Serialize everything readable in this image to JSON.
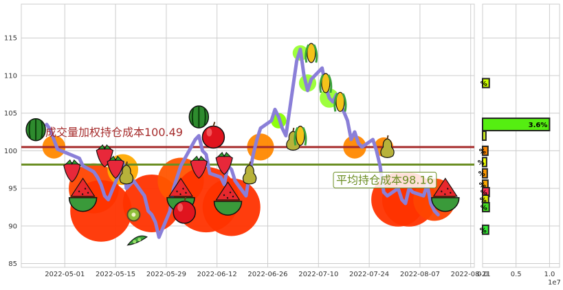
{
  "chart_data": {
    "type": "line",
    "title": "",
    "x_dates": [
      "2022-04-26",
      "2022-04-27",
      "2022-04-28",
      "2022-04-29",
      "2022-05-05",
      "2022-05-06",
      "2022-05-09",
      "2022-05-10",
      "2022-05-11",
      "2022-05-12",
      "2022-05-13",
      "2022-05-16",
      "2022-05-17",
      "2022-05-18",
      "2022-05-19",
      "2022-05-20",
      "2022-05-23",
      "2022-05-24",
      "2022-05-25",
      "2022-05-26",
      "2022-05-27",
      "2022-05-30",
      "2022-05-31",
      "2022-06-01",
      "2022-06-02",
      "2022-06-06",
      "2022-06-07",
      "2022-06-08",
      "2022-06-09",
      "2022-06-10",
      "2022-06-13",
      "2022-06-14",
      "2022-06-15",
      "2022-06-16",
      "2022-06-17",
      "2022-06-20",
      "2022-06-21",
      "2022-06-22",
      "2022-06-23",
      "2022-06-24",
      "2022-06-27",
      "2022-06-28",
      "2022-06-29",
      "2022-06-30",
      "2022-07-01",
      "2022-07-04",
      "2022-07-05",
      "2022-07-06",
      "2022-07-07",
      "2022-07-08",
      "2022-07-11",
      "2022-07-12",
      "2022-07-13",
      "2022-07-14",
      "2022-07-15",
      "2022-07-18",
      "2022-07-19",
      "2022-07-20",
      "2022-07-21",
      "2022-07-22",
      "2022-07-25",
      "2022-07-26",
      "2022-07-27",
      "2022-07-28",
      "2022-07-29",
      "2022-08-01",
      "2022-08-02",
      "2022-08-03",
      "2022-08-04",
      "2022-08-05",
      "2022-08-08",
      "2022-08-09",
      "2022-08-10",
      "2022-08-11",
      "2022-08-12"
    ],
    "price": [
      103.5,
      102.8,
      101.5,
      100.2,
      99.0,
      98.0,
      97.2,
      96.5,
      95.5,
      94.0,
      93.5,
      97.0,
      98.5,
      95.0,
      95.5,
      96.0,
      94.0,
      92.0,
      91.5,
      90.5,
      88.5,
      92.0,
      95.0,
      96.5,
      98.0,
      101.5,
      102.0,
      100.0,
      99.5,
      97.0,
      96.5,
      95.5,
      98.0,
      97.5,
      96.0,
      94.0,
      97.0,
      99.5,
      101.5,
      103.0,
      104.0,
      105.5,
      104.5,
      103.0,
      102.0,
      112.0,
      113.5,
      110.0,
      108.0,
      109.5,
      111.0,
      108.5,
      107.0,
      106.5,
      107.5,
      104.0,
      101.5,
      102.5,
      101.0,
      100.5,
      101.5,
      100.0,
      98.0,
      94.5,
      94.0,
      95.0,
      93.5,
      93.0,
      95.0,
      94.5,
      94.0,
      95.5,
      93.0,
      92.0,
      91.5
    ],
    "avg_cost": 98.16,
    "vol_weighted_cost": 100.49,
    "avg_cost_label": "平均持仓成本98.16",
    "vol_weighted_cost_label": "成交量加权持仓成本100.49",
    "x_ticks": [
      "2022-05-01",
      "2022-05-15",
      "2022-05-29",
      "2022-06-12",
      "2022-06-26",
      "2022-07-10",
      "2022-07-24",
      "2022-08-07",
      "2022-08-21"
    ],
    "y_ticks": [
      85,
      90,
      95,
      100,
      105,
      110,
      115
    ],
    "ylim": [
      84.5,
      119.5
    ],
    "xlim": [
      "2022-04-19",
      "2022-08-22"
    ],
    "grid": true,
    "colors": {
      "price_line": "#8a7fd8",
      "avg_cost_line": "#6b8e23",
      "vol_weighted_line": "#a52a2a",
      "grid": "#cccccc"
    },
    "histogram": {
      "orientation": "horizontal",
      "xlim": [
        0,
        11500000
      ],
      "x_ticks": [
        "0.0",
        "0.5",
        "1.0"
      ],
      "offset_label": "1e7",
      "bars": [
        {
          "price": 109.0,
          "value": 1000000,
          "label": "%",
          "color": "#ccff00"
        },
        {
          "price": 103.5,
          "value": 10000000,
          "label": "3.6%",
          "color": "#55ee11"
        },
        {
          "price": 102.0,
          "value": 500000,
          "label": "",
          "color": "#ccee22"
        },
        {
          "price": 100.0,
          "value": 800000,
          "label": "%",
          "color": "#ff8800"
        },
        {
          "price": 98.5,
          "value": 600000,
          "label": "%",
          "color": "#eeff00"
        },
        {
          "price": 97.0,
          "value": 700000,
          "label": "%",
          "color": "#ff9900"
        },
        {
          "price": 95.5,
          "value": 800000,
          "label": "%",
          "color": "#ffaa00"
        },
        {
          "price": 94.5,
          "value": 1000000,
          "label": "%",
          "color": "#ff3355"
        },
        {
          "price": 93.5,
          "value": 900000,
          "label": "%",
          "color": "#ddee00"
        },
        {
          "price": 92.5,
          "value": 1000000,
          "label": "%",
          "color": "#44dd22"
        },
        {
          "price": 89.5,
          "value": 900000,
          "label": "%",
          "color": "#33ee33"
        }
      ]
    },
    "bubbles": [
      {
        "date": "2022-04-28",
        "price": 100.5,
        "size": 0.6,
        "color": "#ff8800"
      },
      {
        "date": "2022-05-09",
        "price": 95.0,
        "size": 1.3,
        "color": "#ff4400"
      },
      {
        "date": "2022-05-11",
        "price": 92.0,
        "size": 1.6,
        "color": "#ff3300"
      },
      {
        "date": "2022-05-17",
        "price": 97.5,
        "size": 0.8,
        "color": "#ffaa00"
      },
      {
        "date": "2022-05-25",
        "price": 93.0,
        "size": 1.5,
        "color": "#ff3300"
      },
      {
        "date": "2022-06-02",
        "price": 96.0,
        "size": 1.2,
        "color": "#ff5500"
      },
      {
        "date": "2022-06-09",
        "price": 93.5,
        "size": 1.7,
        "color": "#ff3300"
      },
      {
        "date": "2022-06-16",
        "price": 92.5,
        "size": 1.5,
        "color": "#ff3300"
      },
      {
        "date": "2022-06-24",
        "price": 100.5,
        "size": 0.7,
        "color": "#ff8800"
      },
      {
        "date": "2022-06-29",
        "price": 104.0,
        "size": 0.4,
        "color": "#88ff00"
      },
      {
        "date": "2022-07-05",
        "price": 113.0,
        "size": 0.4,
        "color": "#99ff33"
      },
      {
        "date": "2022-07-07",
        "price": 109.0,
        "size": 0.45,
        "color": "#99ff33"
      },
      {
        "date": "2022-07-13",
        "price": 107.0,
        "size": 0.5,
        "color": "#99ff33"
      },
      {
        "date": "2022-07-20",
        "price": 100.5,
        "size": 0.6,
        "color": "#ff8800"
      },
      {
        "date": "2022-07-28",
        "price": 100.5,
        "size": 0.5,
        "color": "#ff8800"
      },
      {
        "date": "2022-08-01",
        "price": 93.5,
        "size": 1.4,
        "color": "#ff3300"
      },
      {
        "date": "2022-08-04",
        "price": 93.5,
        "size": 1.4,
        "color": "#ff3300"
      },
      {
        "date": "2022-08-11",
        "price": 93.5,
        "size": 1.1,
        "color": "#ff4400"
      }
    ],
    "stickers": [
      {
        "date": "2022-04-23",
        "price": 102.8,
        "kind": "watermelon"
      },
      {
        "date": "2022-05-03",
        "price": 97.5,
        "kind": "strawberry"
      },
      {
        "date": "2022-05-06",
        "price": 94.5,
        "kind": "watermelon-slice"
      },
      {
        "date": "2022-05-12",
        "price": 99.5,
        "kind": "strawberry"
      },
      {
        "date": "2022-05-15",
        "price": 98.0,
        "kind": "strawberry"
      },
      {
        "date": "2022-05-18",
        "price": 97.0,
        "kind": "pear"
      },
      {
        "date": "2022-05-20",
        "price": 91.5,
        "kind": "kiwi"
      },
      {
        "date": "2022-05-21",
        "price": 88.0,
        "kind": "peapod"
      },
      {
        "date": "2022-06-02",
        "price": 94.5,
        "kind": "watermelon-slice"
      },
      {
        "date": "2022-06-03",
        "price": 92.0,
        "kind": "apple"
      },
      {
        "date": "2022-06-07",
        "price": 98.0,
        "kind": "strawberry"
      },
      {
        "date": "2022-06-07",
        "price": 104.5,
        "kind": "watermelon"
      },
      {
        "date": "2022-06-11",
        "price": 102.0,
        "kind": "apple"
      },
      {
        "date": "2022-06-14",
        "price": 98.5,
        "kind": "strawberry"
      },
      {
        "date": "2022-06-15",
        "price": 94.0,
        "kind": "watermelon-slice"
      },
      {
        "date": "2022-06-21",
        "price": 97.0,
        "kind": "pear"
      },
      {
        "date": "2022-07-03",
        "price": 101.5,
        "kind": "pear"
      },
      {
        "date": "2022-07-05",
        "price": 102.0,
        "kind": "corn"
      },
      {
        "date": "2022-07-08",
        "price": 113.0,
        "kind": "corn"
      },
      {
        "date": "2022-07-12",
        "price": 109.0,
        "kind": "corn"
      },
      {
        "date": "2022-07-16",
        "price": 106.5,
        "kind": "corn"
      },
      {
        "date": "2022-07-29",
        "price": 100.5,
        "kind": "pear"
      },
      {
        "date": "2022-08-14",
        "price": 94.5,
        "kind": "watermelon-slice"
      }
    ]
  }
}
